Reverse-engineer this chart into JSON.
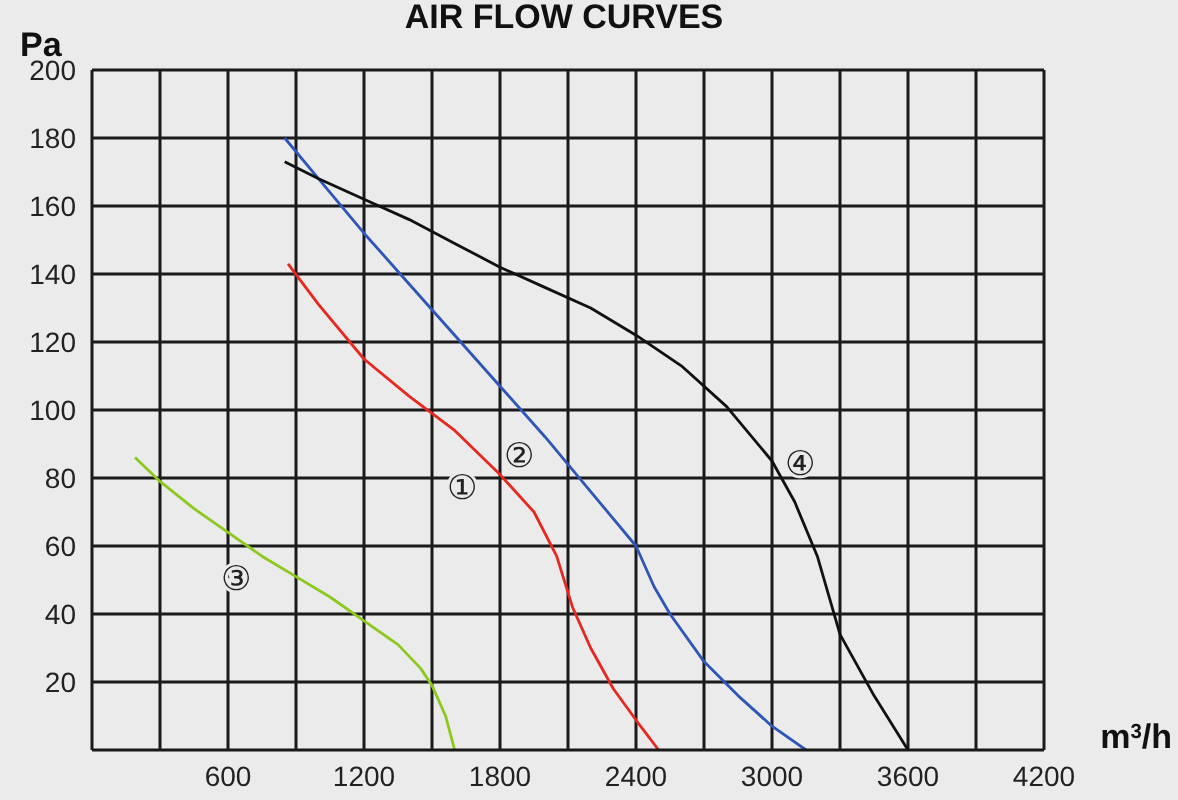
{
  "chart_data": {
    "type": "line",
    "title": "AIR FLOW CURVES",
    "xlabel": "m$^{3}$/h",
    "ylabel": "Pa",
    "xlim": [
      0,
      4200
    ],
    "ylim": [
      0,
      200
    ],
    "xticks": [
      {
        "value": 300,
        "label": null
      },
      600,
      {
        "value": 900,
        "label": null
      },
      1200,
      {
        "value": 1500,
        "label": null
      },
      1800,
      {
        "value": 2100,
        "label": null
      },
      2400,
      {
        "value": 2700,
        "label": null
      },
      3000,
      {
        "value": 3300,
        "label": null
      },
      3600,
      {
        "value": 3900,
        "label": null
      },
      4200
    ],
    "yticks": [
      20,
      40,
      60,
      80,
      100,
      120,
      140,
      160,
      180,
      200
    ],
    "grid": true,
    "marker": "none",
    "line_style": "solid",
    "series": [
      {
        "color": "#e8281e",
        "x": [
          865,
          1000,
          1200,
          1400,
          1600,
          1800,
          1950,
          2050,
          2120,
          2200,
          2300,
          2420,
          2500
        ],
        "values": [
          143,
          131,
          115,
          104,
          94,
          81,
          70,
          57,
          42,
          30,
          18,
          7,
          0
        ]
      },
      {
        "color": "#2e56b8",
        "x": [
          850,
          1000,
          1200,
          1400,
          1600,
          1800,
          2000,
          2200,
          2400,
          2480,
          2550,
          2700,
          2850,
          3000,
          3150
        ],
        "values": [
          180,
          168,
          152,
          137,
          122,
          107,
          92,
          76,
          60,
          48,
          40,
          26,
          16,
          7,
          0
        ]
      },
      {
        "color": "#8cc81e",
        "x": [
          190,
          300,
          450,
          600,
          750,
          900,
          1050,
          1200,
          1350,
          1450,
          1500,
          1560,
          1600
        ],
        "values": [
          86,
          79,
          71,
          64,
          57,
          51,
          45,
          38,
          31,
          24,
          19,
          10,
          0
        ]
      },
      {
        "color": "#111111",
        "x": [
          850,
          1000,
          1200,
          1400,
          1600,
          1800,
          2000,
          2200,
          2400,
          2600,
          2800,
          3000,
          3100,
          3200,
          3300,
          3450,
          3600
        ],
        "values": [
          173,
          168,
          162,
          156,
          149,
          142,
          136,
          130,
          122,
          113,
          101,
          85,
          73,
          57,
          34,
          16,
          0
        ]
      }
    ],
    "annotations": [
      {
        "text": "①",
        "x": 1800,
        "y": 81
      },
      {
        "text": "②",
        "x": 2000,
        "y": 92
      },
      {
        "text": "③",
        "x": 750,
        "y": 57
      },
      {
        "text": "④",
        "x": 3000,
        "y": 85
      }
    ]
  }
}
